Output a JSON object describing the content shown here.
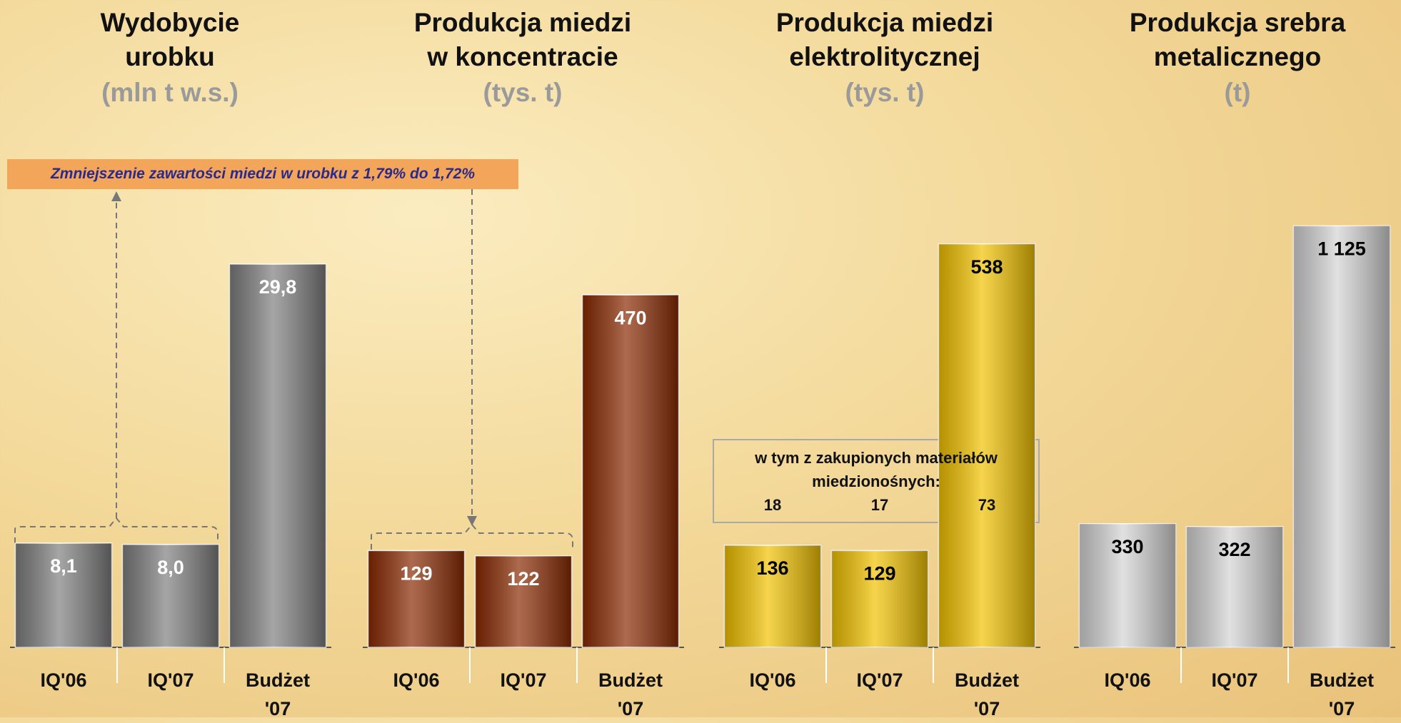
{
  "chart_data": [
    {
      "type": "bar",
      "title": [
        "Wydobycie",
        "urobku"
      ],
      "unit": "(mln t w.s.)",
      "categories": [
        "IQ'06",
        "IQ'07",
        "Budżet '07"
      ],
      "values": [
        8.1,
        8.0,
        29.8
      ],
      "value_labels": [
        "8,1",
        "8,0",
        "29,8"
      ],
      "color": "#7f7f7f",
      "label_color": "#ffffff",
      "ylim": [
        0,
        33.3
      ]
    },
    {
      "type": "bar",
      "title": [
        "Produkcja miedzi",
        "w koncentracie"
      ],
      "unit": "(tys. t)",
      "categories": [
        "IQ'06",
        "IQ'07",
        "Budżet '07"
      ],
      "values": [
        129,
        122,
        470
      ],
      "color": "#8a2a02",
      "label_color": "#ffffff",
      "ylim": [
        0,
        571
      ]
    },
    {
      "type": "bar",
      "title": [
        "Produkcja miedzi",
        "elektrolitycznej"
      ],
      "unit": "(tys. t)",
      "categories": [
        "IQ'06",
        "IQ'07",
        "Budżet '07"
      ],
      "values": [
        136,
        129,
        538
      ],
      "color": "#f2c200",
      "label_color": "#000000",
      "ylim": [
        0,
        571
      ],
      "note": [
        "w tym z zakupionych materiałów",
        "miedzionośnych:"
      ],
      "note_values": [
        18,
        17,
        73
      ]
    },
    {
      "type": "bar",
      "title": [
        "Produkcja srebra",
        "metalicznego"
      ],
      "unit": "(t)",
      "categories": [
        "IQ'06",
        "IQ'07",
        "Budżet '07"
      ],
      "values": [
        330,
        322,
        1125
      ],
      "value_labels": [
        "330",
        "322",
        "1 125"
      ],
      "color": "#d4d4d4",
      "label_color": "#000000",
      "ylim": [
        0,
        1143
      ]
    }
  ],
  "annotation": "Zmniejszenie zawartości miedzi w urobku z 1,79% do 1,72%"
}
